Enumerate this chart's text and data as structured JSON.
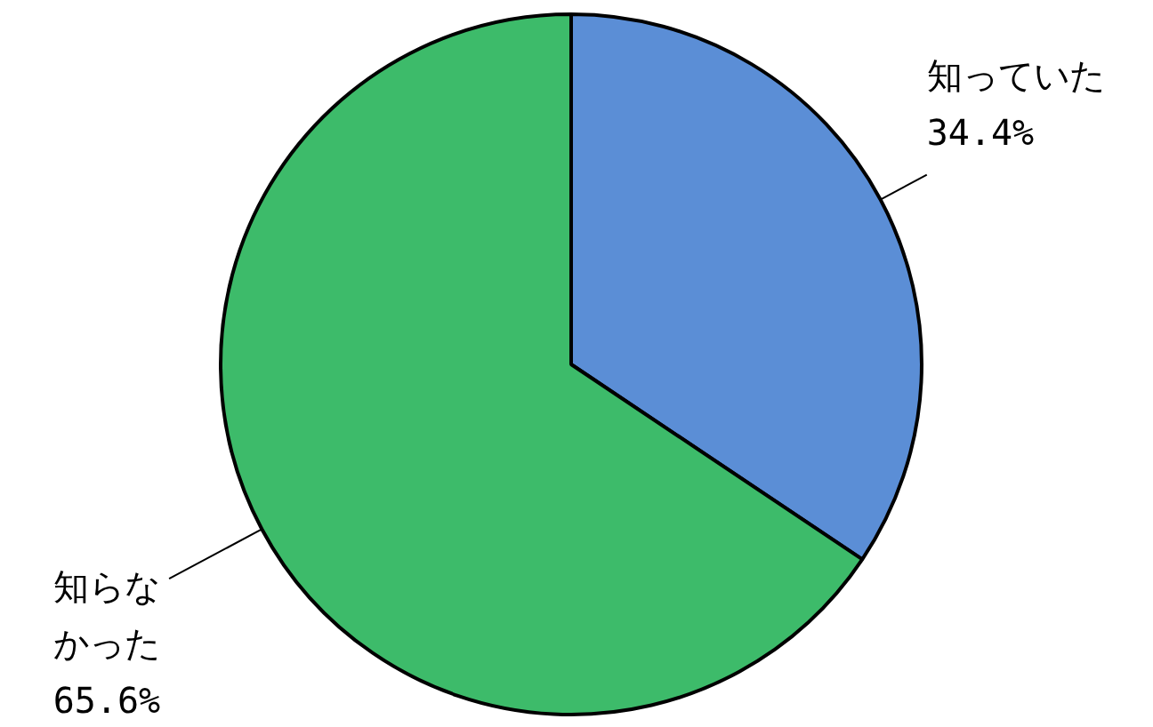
{
  "chart_data": {
    "type": "pie",
    "categories": [
      "知っていた",
      "知らなかった"
    ],
    "values": [
      34.4,
      65.6
    ],
    "colors": [
      "#5b8ed6",
      "#3dbb6a"
    ],
    "value_labels": [
      "34.4%",
      "65.6%"
    ]
  }
}
